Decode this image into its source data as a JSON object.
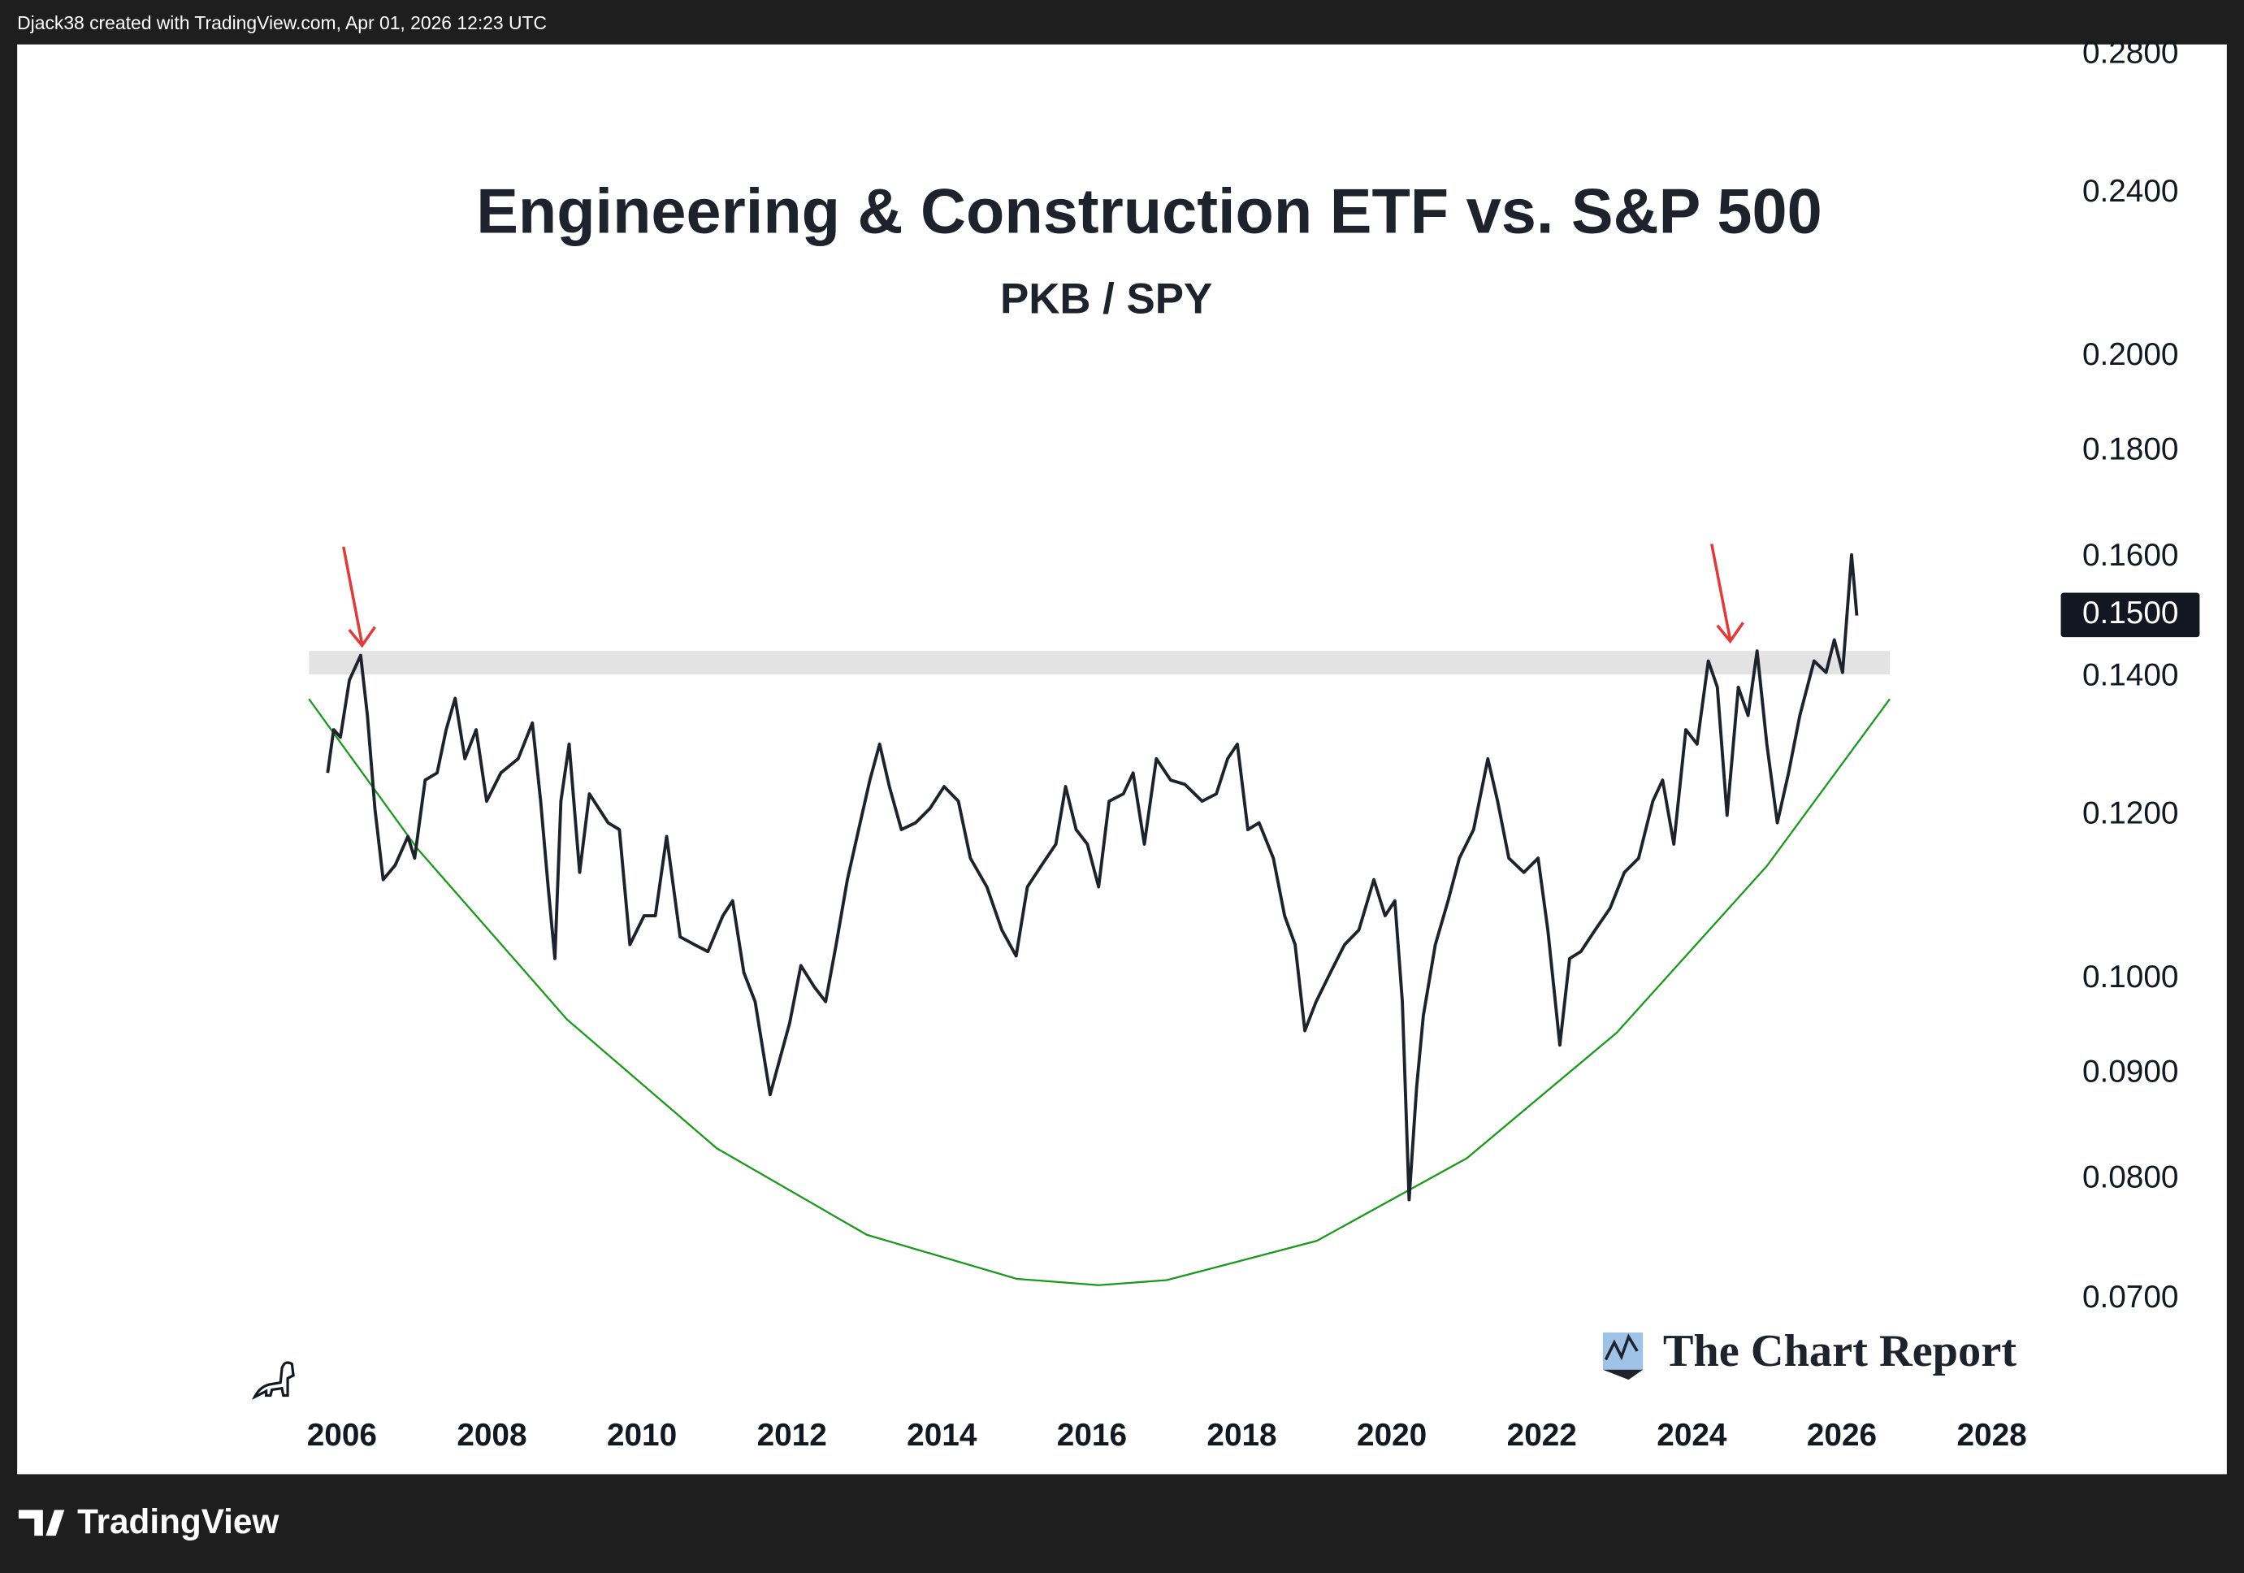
{
  "header": "Djack38 created with TradingView.com, Apr 01, 2026 12:23 UTC",
  "footer": "TradingView",
  "watermark": "The Chart Report",
  "chart_data": {
    "type": "line",
    "title": "Engineering & Construction ETF vs. S&P 500",
    "subtitle": "PKB / SPY",
    "color": "#1e222d",
    "log_scale": true,
    "x": [
      2005.81,
      2005.89,
      2005.98,
      2006.1,
      2006.25,
      2006.34,
      2006.44,
      2006.55,
      2006.71,
      2006.88,
      2006.97,
      2007.11,
      2007.27,
      2007.39,
      2007.51,
      2007.64,
      2007.79,
      2007.93,
      2008.12,
      2008.35,
      2008.54,
      2008.65,
      2008.75,
      2008.84,
      2008.92,
      2009.03,
      2009.17,
      2009.3,
      2009.55,
      2009.7,
      2009.84,
      2010.03,
      2010.18,
      2010.33,
      2010.51,
      2010.7,
      2010.88,
      2011.08,
      2011.21,
      2011.36,
      2011.51,
      2011.71,
      2011.84,
      2011.97,
      2012.12,
      2012.3,
      2012.45,
      2012.59,
      2012.74,
      2012.89,
      2013.04,
      2013.17,
      2013.3,
      2013.46,
      2013.65,
      2013.84,
      2014.03,
      2014.22,
      2014.38,
      2014.6,
      2014.8,
      2014.99,
      2015.14,
      2015.33,
      2015.52,
      2015.65,
      2015.79,
      2015.94,
      2016.09,
      2016.23,
      2016.42,
      2016.55,
      2016.7,
      2016.86,
      2017.05,
      2017.24,
      2017.47,
      2017.66,
      2017.81,
      2017.94,
      2018.08,
      2018.23,
      2018.42,
      2018.57,
      2018.71,
      2018.84,
      2018.99,
      2019.18,
      2019.37,
      2019.56,
      2019.76,
      2019.91,
      2020.04,
      2020.14,
      2020.23,
      2020.33,
      2020.42,
      2020.58,
      2020.75,
      2020.9,
      2021.09,
      2021.28,
      2021.41,
      2021.56,
      2021.76,
      2021.95,
      2022.08,
      2022.24,
      2022.37,
      2022.52,
      2022.71,
      2022.91,
      2023.1,
      2023.29,
      2023.48,
      2023.61,
      2023.76,
      2023.92,
      2024.07,
      2024.22,
      2024.34,
      2024.47,
      2024.62,
      2024.75,
      2024.87,
      2025.0,
      2025.14,
      2025.29,
      2025.44,
      2025.63,
      2025.79,
      2025.9,
      2026.01,
      2026.13,
      2026.2
    ],
    "values": [
      0.1258,
      0.132,
      0.1309,
      0.1395,
      0.1434,
      0.1341,
      0.1209,
      0.1117,
      0.1135,
      0.1172,
      0.1144,
      0.1248,
      0.1258,
      0.132,
      0.1367,
      0.1278,
      0.132,
      0.1219,
      0.1258,
      0.1278,
      0.133,
      0.1219,
      0.1108,
      0.1023,
      0.1219,
      0.1299,
      0.1126,
      0.1229,
      0.119,
      0.1181,
      0.1039,
      0.1073,
      0.1073,
      0.1172,
      0.1048,
      0.1039,
      0.1031,
      0.1073,
      0.1091,
      0.1007,
      0.0975,
      0.0879,
      0.0915,
      0.0952,
      0.1015,
      0.0991,
      0.0975,
      0.1039,
      0.1117,
      0.1181,
      0.1248,
      0.1299,
      0.1239,
      0.1181,
      0.119,
      0.1209,
      0.1239,
      0.1219,
      0.1144,
      0.1108,
      0.1056,
      0.1026,
      0.1108,
      0.1135,
      0.1162,
      0.1239,
      0.1181,
      0.1162,
      0.1108,
      0.1219,
      0.1229,
      0.1258,
      0.1162,
      0.1278,
      0.1248,
      0.1242,
      0.1219,
      0.1229,
      0.1278,
      0.1299,
      0.1181,
      0.119,
      0.1144,
      0.1073,
      0.1039,
      0.0944,
      0.0975,
      0.1007,
      0.1039,
      0.1056,
      0.1117,
      0.1073,
      0.1091,
      0.0975,
      0.0782,
      0.0886,
      0.096,
      0.1039,
      0.1091,
      0.1144,
      0.1181,
      0.1278,
      0.1219,
      0.1144,
      0.1126,
      0.1144,
      0.1056,
      0.0929,
      0.1023,
      0.1031,
      0.1056,
      0.1082,
      0.1126,
      0.1144,
      0.1219,
      0.1248,
      0.1162,
      0.132,
      0.1299,
      0.1425,
      0.1384,
      0.12,
      0.1384,
      0.1341,
      0.1441,
      0.1299,
      0.119,
      0.1258,
      0.1341,
      0.1425,
      0.1407,
      0.1459,
      0.1407,
      0.1604,
      0.1499
    ],
    "trend_curve": {
      "color": "#1a9a1a",
      "x": [
        2005.56,
        2007,
        2009,
        2011,
        2013,
        2015,
        2016.09,
        2017,
        2019,
        2021,
        2023,
        2025,
        2026.64
      ],
      "values": [
        0.1366,
        0.1157,
        0.0956,
        0.0828,
        0.0752,
        0.0716,
        0.0711,
        0.0715,
        0.0747,
        0.0819,
        0.0942,
        0.1134,
        0.1366
      ]
    },
    "resistance_band": {
      "color": "#e3e3e3",
      "x": [
        2005.56,
        2026.64
      ],
      "low": 0.1404,
      "high": 0.1441
    },
    "last_price": {
      "value": 0.15,
      "label": "0.1500"
    },
    "xlim": [
      2001.67,
      2028.92
    ],
    "ylim": [
      0.0576,
      0.2832
    ],
    "xticks": [
      2006,
      2008,
      2010,
      2012,
      2014,
      2016,
      2018,
      2020,
      2022,
      2024,
      2026,
      2028
    ],
    "yticks": [
      {
        "value": 0.07,
        "label": "0.0700"
      },
      {
        "value": 0.08,
        "label": "0.0800"
      },
      {
        "value": 0.09,
        "label": "0.0900"
      },
      {
        "value": 0.1,
        "label": "0.1000"
      },
      {
        "value": 0.12,
        "label": "0.1200"
      },
      {
        "value": 0.14,
        "label": "0.1400"
      },
      {
        "value": 0.16,
        "label": "0.1600"
      },
      {
        "value": 0.18,
        "label": "0.1800"
      },
      {
        "value": 0.2,
        "label": "0.2000"
      },
      {
        "value": 0.24,
        "label": "0.2400"
      },
      {
        "value": 0.28,
        "label": "0.2800"
      }
    ]
  }
}
